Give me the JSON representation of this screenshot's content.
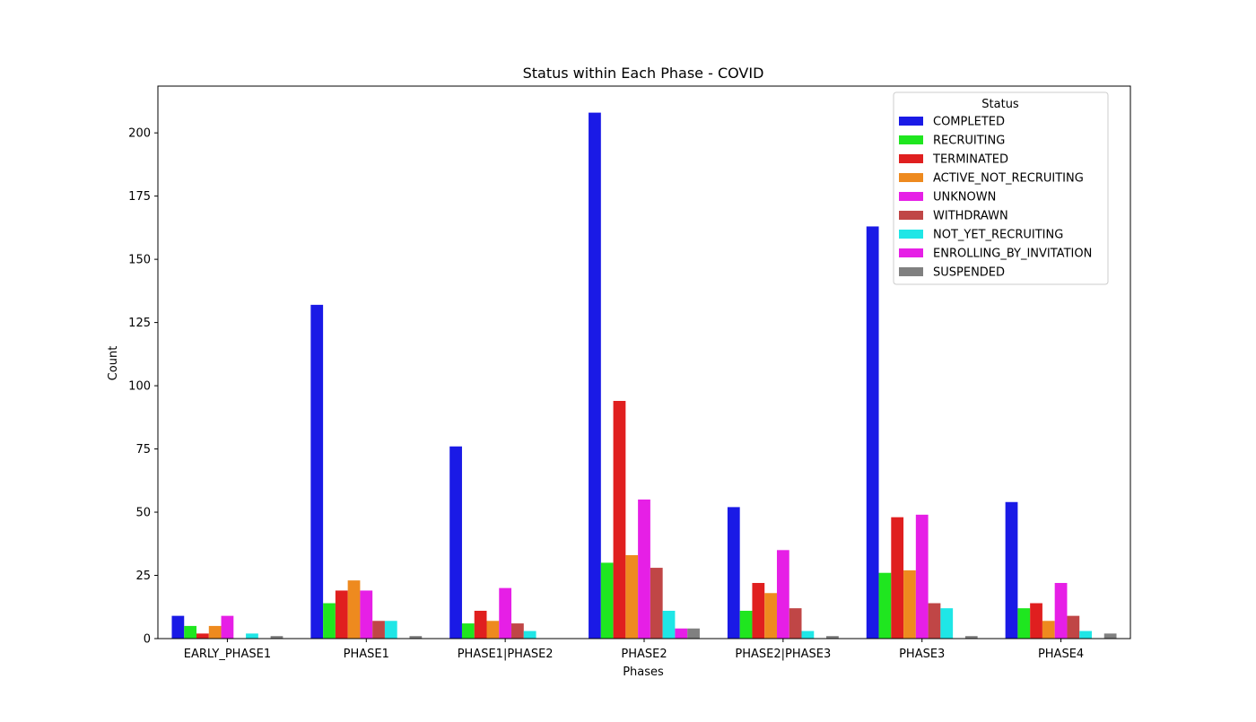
{
  "chart_data": {
    "type": "bar",
    "title": "Status within Each Phase - COVID",
    "xlabel": "Phases",
    "ylabel": "Count",
    "ylim": [
      0,
      218.5
    ],
    "yticks": [
      0,
      25,
      50,
      75,
      100,
      125,
      150,
      175,
      200
    ],
    "categories": [
      "EARLY_PHASE1",
      "PHASE1",
      "PHASE1|PHASE2",
      "PHASE2",
      "PHASE2|PHASE3",
      "PHASE3",
      "PHASE4"
    ],
    "grid": false,
    "legend": {
      "title": "Status",
      "placement": "top-right"
    },
    "series": [
      {
        "name": "COMPLETED",
        "color": "#1a1ae6",
        "values": [
          9,
          132,
          76,
          208,
          52,
          163,
          54
        ]
      },
      {
        "name": "RECRUITING",
        "color": "#1fe61f",
        "values": [
          5,
          14,
          6,
          30,
          11,
          26,
          12
        ]
      },
      {
        "name": "TERMINATED",
        "color": "#e01f1f",
        "values": [
          2,
          19,
          11,
          94,
          22,
          48,
          14
        ]
      },
      {
        "name": "ACTIVE_NOT_RECRUITING",
        "color": "#ee8a1f",
        "values": [
          5,
          23,
          7,
          33,
          18,
          27,
          7
        ]
      },
      {
        "name": "UNKNOWN",
        "color": "#e61fe6",
        "values": [
          9,
          19,
          20,
          55,
          35,
          49,
          22
        ]
      },
      {
        "name": "WITHDRAWN",
        "color": "#c04646",
        "values": [
          0,
          7,
          6,
          28,
          12,
          14,
          9
        ]
      },
      {
        "name": "NOT_YET_RECRUITING",
        "color": "#1fe6e6",
        "values": [
          2,
          7,
          3,
          11,
          3,
          12,
          3
        ]
      },
      {
        "name": "ENROLLING_BY_INVITATION",
        "color": "#e61fe6",
        "values": [
          0,
          0,
          0,
          4,
          0,
          0,
          0
        ]
      },
      {
        "name": "SUSPENDED",
        "color": "#808080",
        "values": [
          1,
          1,
          0,
          4,
          1,
          1,
          2
        ]
      }
    ]
  }
}
